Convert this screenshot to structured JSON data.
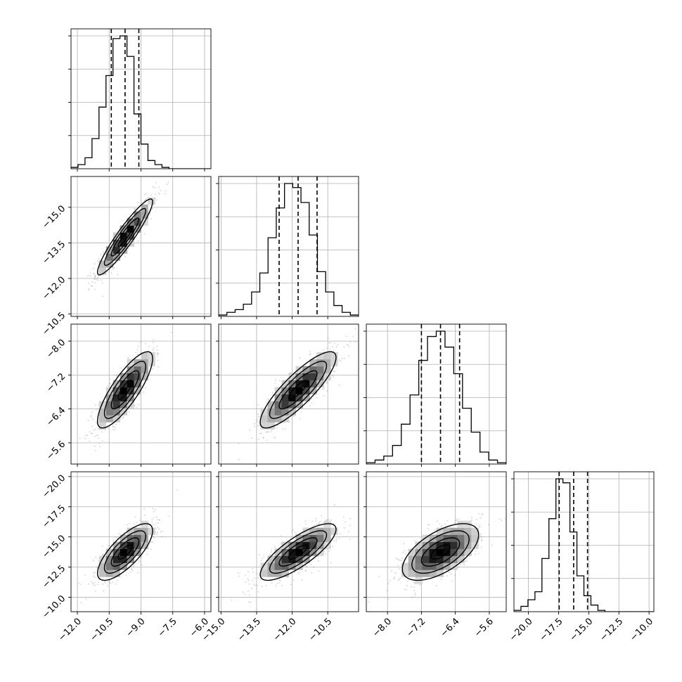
{
  "chart_data": {
    "type": "corner",
    "grid": true,
    "variables": [
      {
        "xlim": [
          -12.3,
          -5.7
        ],
        "ticks": [
          -12.0,
          -10.5,
          -9.0,
          -7.5,
          -6.0
        ],
        "tick_labels": [
          "−12.0",
          "−10.5",
          "−9.0",
          "−7.5",
          "−6.0"
        ],
        "quantiles": [
          -10.4,
          -9.75,
          -9.1
        ]
      },
      {
        "xlim": [
          -15.1,
          -9.2
        ],
        "ticks": [
          -15.0,
          -13.5,
          -12.0,
          -10.5
        ],
        "tick_labels": [
          "−15.0",
          "−13.5",
          "−12.0",
          "−10.5"
        ],
        "quantiles": [
          -12.55,
          -11.75,
          -10.95
        ]
      },
      {
        "xlim": [
          -8.5,
          -5.2
        ],
        "ticks": [
          -8.0,
          -7.2,
          -6.4,
          -5.6
        ],
        "tick_labels": [
          "−8.0",
          "−7.2",
          "−6.4",
          "−5.6"
        ],
        "quantiles": [
          -7.2,
          -6.75,
          -6.3
        ]
      },
      {
        "xlim": [
          -21.2,
          -9.6
        ],
        "ticks": [
          -20.0,
          -17.5,
          -15.0,
          -12.5,
          -10.0
        ],
        "tick_labels": [
          "−20.0",
          "−17.5",
          "−15.0",
          "−12.5",
          "−10.0"
        ],
        "quantiles": [
          -17.45,
          -16.25,
          -15.1
        ]
      }
    ],
    "y_tick_labels": {
      "var1": [
        "−10.5",
        "−12.0",
        "−13.5",
        "−15.0"
      ],
      "var2": [
        "−5.6",
        "−6.4",
        "−7.2",
        "−8.0"
      ],
      "var3": [
        "−10.0",
        "−12.5",
        "−15.0",
        "−17.5",
        "−20.0"
      ]
    },
    "histograms": [
      {
        "variable": 0,
        "counts": [
          1,
          3,
          8,
          22,
          45,
          68,
          95,
          97,
          82,
          40,
          18,
          6,
          3,
          1,
          0,
          0,
          0,
          0,
          0,
          0
        ]
      },
      {
        "variable": 1,
        "counts": [
          1,
          3,
          5,
          9,
          18,
          32,
          58,
          80,
          98,
          95,
          84,
          60,
          33,
          18,
          8,
          3,
          1
        ]
      },
      {
        "variable": 2,
        "counts": [
          1,
          3,
          6,
          14,
          30,
          52,
          78,
          96,
          100,
          88,
          68,
          42,
          24,
          9,
          3,
          1
        ]
      },
      {
        "variable": 3,
        "counts": [
          1,
          4,
          9,
          15,
          40,
          70,
          100,
          97,
          60,
          27,
          12,
          5,
          1,
          0,
          0,
          0,
          0,
          0,
          0,
          0
        ]
      }
    ],
    "correlations": [
      {
        "x": 0,
        "y": 1,
        "rho": 0.93
      },
      {
        "x": 0,
        "y": 2,
        "rho": 0.82
      },
      {
        "x": 1,
        "y": 2,
        "rho": 0.85
      },
      {
        "x": 0,
        "y": 3,
        "rho": 0.75
      },
      {
        "x": 1,
        "y": 3,
        "rho": 0.8
      },
      {
        "x": 2,
        "y": 3,
        "rho": 0.6
      }
    ]
  }
}
